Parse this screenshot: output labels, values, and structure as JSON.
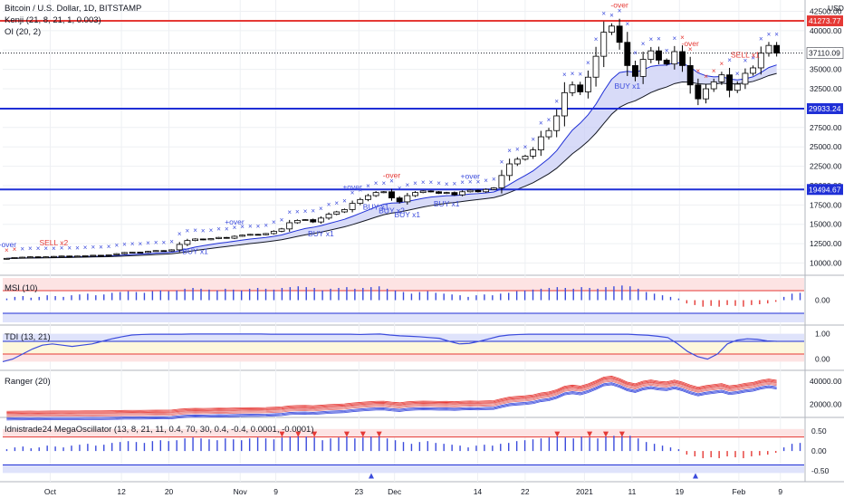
{
  "header": {
    "symbol": "Bitcoin / U.S. Dollar, 1D, BITSTAMP",
    "study1": "Kenji (21, 8, 21, 1, 0.003)",
    "study2": "OI (20, 2)"
  },
  "colors": {
    "up": "#ffffff",
    "down": "#000000",
    "red_line": "#e53935",
    "blue_line": "#1f2fd6",
    "cross_blue": "#3b4bdc",
    "cross_red": "#e53935",
    "band_fill": "#c8ccf5",
    "band_green": "#cfe9d4",
    "grid": "#eef0f3",
    "axis_text": "#131722"
  },
  "chart_data": [
    {
      "type": "candlestick",
      "title": "Bitcoin / U.S. Dollar, 1D, BITSTAMP",
      "y_ticks": [
        "42500.00",
        "40000.00",
        "37500.00",
        "35000.00",
        "32500.00",
        "30000.00",
        "27500.00",
        "25000.00",
        "22500.00",
        "20000.00",
        "17500.00",
        "15000.00",
        "12500.00",
        "10000.00"
      ],
      "x_ticks": [
        "Oct",
        "12",
        "20",
        "Nov",
        "9",
        "23",
        "Dec",
        "14",
        "22",
        "2021",
        "11",
        "19",
        "Feb",
        "9"
      ],
      "currency_label": "USD",
      "ylim": [
        9000,
        43500
      ],
      "price_lines": [
        {
          "value": 41273.77,
          "label": "41273.77",
          "color": "#e53935"
        },
        {
          "value": 29933.24,
          "label": "29933.24",
          "color": "#1f2fd6"
        },
        {
          "value": 19494.67,
          "label": "19494.67",
          "color": "#1f2fd6"
        }
      ],
      "last_price": {
        "value": 37110.09,
        "label": "37110.09"
      },
      "annotations": [
        "+over",
        "SELL x2",
        "BUY x1",
        "+over",
        "BUY x1",
        "+over",
        "BUY x1",
        "BUY x2",
        "-over",
        "BUY x1",
        "BUY x1",
        "+over",
        "-over",
        "BUY x1",
        "-over",
        "SELL x1"
      ],
      "closes": [
        10600,
        10700,
        10750,
        10800,
        10750,
        10800,
        10850,
        10900,
        10850,
        10900,
        10950,
        11000,
        10950,
        11050,
        11200,
        11350,
        11400,
        11350,
        11500,
        11600,
        11550,
        11700,
        12400,
        12900,
        13100,
        13000,
        13150,
        13300,
        13200,
        13450,
        13600,
        13700,
        13650,
        13800,
        14100,
        14400,
        15200,
        15500,
        15600,
        15300,
        15800,
        16300,
        16600,
        16900,
        17700,
        18200,
        18700,
        19100,
        19200,
        18400,
        17900,
        18700,
        19100,
        19300,
        19200,
        19000,
        19100,
        18800,
        19200,
        19400,
        19200,
        19500,
        19700,
        21300,
        22800,
        23400,
        23800,
        24600,
        26300,
        27100,
        29000,
        32000,
        33000,
        32100,
        34000,
        36700,
        39800,
        40600,
        38500,
        35500,
        34100,
        36300,
        37400,
        36200,
        35700,
        37300,
        35500,
        33000,
        31200,
        32500,
        33400,
        34300,
        32300,
        33100,
        34500,
        35200,
        37100,
        38100,
        37110
      ]
    },
    {
      "type": "line",
      "name": "MSI (10)",
      "y_ticks": [
        "0.00"
      ],
      "ylim": [
        -1,
        1
      ],
      "values": [
        0.1,
        0.2,
        0.25,
        0.15,
        0.2,
        0.3,
        0.25,
        0.2,
        0.3,
        0.35,
        0.4,
        0.3,
        0.35,
        0.45,
        0.5,
        0.55,
        0.5,
        0.45,
        0.55,
        0.6,
        0.55,
        0.6,
        0.7,
        0.75,
        0.7,
        0.65,
        0.6,
        0.7,
        0.65,
        0.6,
        0.7,
        0.75,
        0.7,
        0.65,
        0.75,
        0.8,
        0.85,
        0.8,
        0.75,
        0.6,
        0.7,
        0.75,
        0.8,
        0.7,
        0.75,
        0.8,
        0.85,
        0.7,
        0.6,
        0.5,
        0.4,
        0.5,
        0.55,
        0.45,
        0.4,
        0.35,
        0.3,
        0.2,
        0.3,
        0.35,
        0.3,
        0.4,
        0.45,
        0.55,
        0.6,
        0.65,
        0.7,
        0.75,
        0.8,
        0.75,
        0.7,
        0.8,
        0.75,
        0.7,
        0.8,
        0.85,
        0.9,
        0.85,
        0.7,
        0.5,
        0.4,
        0.3,
        0.2,
        0.1,
        -0.2,
        -0.3,
        -0.4,
        -0.35,
        -0.4,
        -0.3,
        -0.35,
        -0.4,
        -0.3,
        -0.25,
        -0.2,
        -0.1,
        0.2,
        0.4,
        0.45
      ]
    },
    {
      "type": "line",
      "name": "TDI (13, 21)",
      "y_ticks": [
        "1.00",
        "0.00"
      ],
      "ylim": [
        -0.3,
        1.2
      ],
      "values": [
        -0.1,
        0.0,
        0.2,
        0.4,
        0.55,
        0.6,
        0.55,
        0.5,
        0.55,
        0.6,
        0.7,
        0.8,
        0.88,
        0.95,
        0.97,
        0.98,
        0.98,
        0.98,
        0.98,
        0.99,
        0.99,
        0.99,
        0.99,
        0.99,
        0.99,
        0.99,
        0.99,
        0.98,
        0.98,
        0.98,
        0.98,
        0.98,
        0.98,
        0.98,
        0.98,
        0.98,
        0.97,
        0.98,
        0.99,
        0.95,
        0.92,
        0.9,
        0.88,
        0.85,
        0.82,
        0.7,
        0.6,
        0.62,
        0.7,
        0.8,
        0.9,
        0.95,
        0.97,
        0.98,
        0.98,
        0.98,
        0.98,
        0.98,
        0.98,
        0.98,
        0.98,
        0.98,
        0.98,
        0.98,
        0.96,
        0.94,
        0.9,
        0.85,
        0.6,
        0.3,
        0.1,
        0.0,
        0.2,
        0.6,
        0.75,
        0.8,
        0.78,
        0.72,
        0.7
      ]
    },
    {
      "type": "line",
      "name": "Ranger (20)",
      "y_ticks": [
        "40000.00",
        "20000.00"
      ],
      "ylim": [
        12000,
        46000
      ],
      "series": [
        {
          "name": "upper",
          "offset": 2600
        },
        {
          "name": "mid",
          "offset": 0
        },
        {
          "name": "lower",
          "offset": -2600
        }
      ]
    },
    {
      "type": "bar",
      "name": "Idnistrade24 MegaOscillator (13, 8, 21, 11, 0.4, 70, 30, 0.4, -0.4, 0.0001, -0.0001)",
      "y_ticks": [
        "0.50",
        "0.00",
        "-0.50"
      ],
      "ylim": [
        -0.7,
        0.75
      ]
    }
  ]
}
